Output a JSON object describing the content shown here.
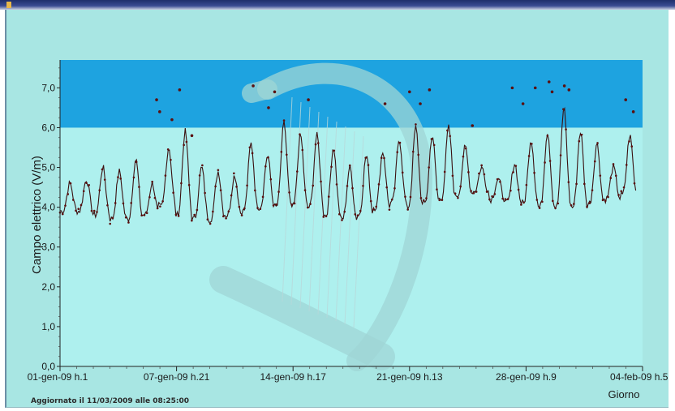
{
  "chart_data": {
    "type": "line",
    "title": "",
    "ylabel": "Campo elettrico (V/m)",
    "xlabel": "Giorno",
    "ylim": [
      0,
      7.7
    ],
    "ytick_labels": [
      "0,0",
      "1,0",
      "2,0",
      "3,0",
      "4,0",
      "5,0",
      "6,0",
      "7,0"
    ],
    "ytick_values": [
      0,
      1,
      2,
      3,
      4,
      5,
      6,
      7
    ],
    "xtick_labels": [
      "01-gen-09 h.1",
      "07-gen-09 h.21",
      "14-gen-09 h.17",
      "21-gen-09 h.13",
      "28-gen-09 h.9",
      "04-feb-09 h.5"
    ],
    "threshold": 6.0,
    "grid": false,
    "series": [
      {
        "color": "#3a1010",
        "x_unit": "days since 01-gen-09 h.1",
        "daily_min": [
          3.9,
          3.9,
          3.8,
          3.7,
          3.7,
          3.8,
          4.0,
          3.8,
          3.7,
          3.7,
          3.8,
          3.9,
          4.0,
          4.0,
          4.0,
          4.0,
          3.8,
          3.7,
          3.8,
          4.0,
          4.1,
          4.0,
          4.1,
          4.2,
          4.3,
          4.4,
          4.2,
          4.1,
          4.1,
          4.0,
          4.0,
          4.0,
          4.1,
          4.2,
          4.3
        ],
        "daily_max": [
          4.6,
          4.7,
          5.0,
          4.9,
          5.2,
          4.6,
          5.5,
          5.9,
          5.0,
          4.9,
          4.8,
          5.6,
          5.3,
          6.1,
          5.8,
          5.8,
          5.5,
          5.0,
          5.3,
          5.4,
          5.7,
          6.0,
          5.8,
          6.0,
          5.5,
          5.0,
          4.7,
          5.1,
          5.7,
          5.9,
          6.5,
          5.9,
          5.6,
          5.0,
          5.8
        ]
      }
    ],
    "outliers": [
      {
        "x": 6.3,
        "y": 6.7
      },
      {
        "x": 6.5,
        "y": 6.4
      },
      {
        "x": 7.3,
        "y": 6.2
      },
      {
        "x": 7.8,
        "y": 6.95
      },
      {
        "x": 8.6,
        "y": 5.8
      },
      {
        "x": 12.6,
        "y": 7.05
      },
      {
        "x": 13.6,
        "y": 6.5
      },
      {
        "x": 14.0,
        "y": 6.9
      },
      {
        "x": 16.2,
        "y": 6.7
      },
      {
        "x": 21.2,
        "y": 6.6
      },
      {
        "x": 22.8,
        "y": 6.9
      },
      {
        "x": 23.5,
        "y": 6.6
      },
      {
        "x": 24.1,
        "y": 6.95
      },
      {
        "x": 26.9,
        "y": 6.05
      },
      {
        "x": 29.5,
        "y": 7.0
      },
      {
        "x": 30.2,
        "y": 6.6
      },
      {
        "x": 31.0,
        "y": 7.0
      },
      {
        "x": 31.9,
        "y": 7.15
      },
      {
        "x": 32.1,
        "y": 6.9
      },
      {
        "x": 32.9,
        "y": 7.05
      },
      {
        "x": 33.2,
        "y": 6.95
      },
      {
        "x": 36.9,
        "y": 6.7
      },
      {
        "x": 37.4,
        "y": 6.4
      }
    ]
  },
  "footer_note": "Aggiornato il 11/03/2009 alle 08:25:00",
  "colors": {
    "plot_bg": "#aef0ee",
    "above_threshold_band": "#1ea3e0",
    "series_line": "#3a1010",
    "watermark": "#9fd5d5"
  }
}
